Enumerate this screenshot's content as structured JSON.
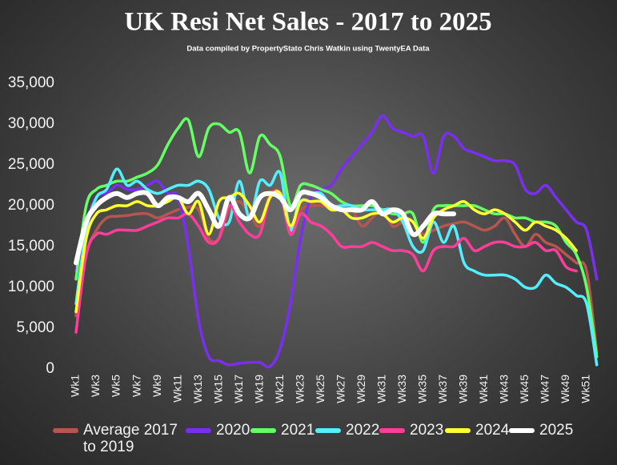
{
  "chart_data": {
    "type": "line",
    "title": "UK  Resi Net Sales - 2017 to 2025",
    "subtitle": "Data compiled by PropertyStato Chris Watkin using TwentyEA Data",
    "categories": [
      "Wk1",
      null,
      "Wk3",
      null,
      "Wk5",
      null,
      "Wk7",
      null,
      "Wk9",
      null,
      "Wk11",
      null,
      "Wk13",
      null,
      "Wk15",
      null,
      "Wk17",
      null,
      "Wk19",
      null,
      "Wk21",
      null,
      "Wk23",
      null,
      "Wk25",
      null,
      "Wk27",
      null,
      "Wk29",
      null,
      "Wk31",
      null,
      "Wk33",
      null,
      "Wk35",
      null,
      "Wk37",
      null,
      "Wk39",
      null,
      "Wk41",
      null,
      "Wk43",
      null,
      "Wk45",
      null,
      "Wk47",
      null,
      "Wk49",
      null,
      "Wk51",
      null
    ],
    "ylim": [
      0,
      35000
    ],
    "yticks": [
      0,
      {
        "value": 5000,
        "label": "5,000"
      },
      {
        "value": 10000,
        "label": "10,000"
      },
      {
        "value": 15000,
        "label": "15,000"
      },
      {
        "value": 20000,
        "label": "20,000"
      },
      {
        "value": 25000,
        "label": "25,000"
      },
      {
        "value": 30000,
        "label": "30,000"
      },
      {
        "value": 35000,
        "label": "35,000"
      }
    ],
    "grid": false,
    "legend": "bottom",
    "series": [
      {
        "name": "Average 2017 to 2019",
        "color": "#b5574f",
        "values": [
          6500,
          14000,
          17000,
          18500,
          18700,
          18800,
          19000,
          19000,
          18500,
          19000,
          19500,
          19800,
          19500,
          16000,
          16000,
          19500,
          20500,
          19000,
          17500,
          21500,
          21000,
          17500,
          19500,
          20000,
          20000,
          19800,
          19500,
          19500,
          17500,
          18500,
          19500,
          17500,
          18000,
          18000,
          16500,
          17000,
          17500,
          17800,
          18000,
          17500,
          17000,
          17500,
          18500,
          16500,
          15000,
          16500,
          15500,
          15000,
          14000,
          13000,
          12000,
          2000
        ]
      },
      {
        "name": "2020",
        "color": "#7a2ff0",
        "values": [
          12000,
          18000,
          21000,
          21500,
          22500,
          22000,
          22000,
          22500,
          23000,
          21500,
          21000,
          15000,
          6000,
          1500,
          1000,
          500,
          700,
          800,
          800,
          300,
          2500,
          8000,
          16000,
          21000,
          22000,
          22500,
          24500,
          26000,
          27500,
          29000,
          31000,
          29500,
          29000,
          28500,
          28500,
          24000,
          28500,
          28500,
          27000,
          26500,
          26000,
          25500,
          25500,
          25000,
          22000,
          21500,
          22500,
          21000,
          19500,
          18000,
          17000,
          11000
        ]
      },
      {
        "name": "2021",
        "color": "#66ff66",
        "values": [
          11000,
          20000,
          22000,
          22500,
          23000,
          23000,
          23500,
          24000,
          25000,
          27500,
          29500,
          30500,
          26000,
          29500,
          30000,
          29000,
          29000,
          24000,
          28500,
          27500,
          26000,
          20000,
          22500,
          22500,
          22000,
          21500,
          20500,
          20000,
          20000,
          20000,
          19500,
          19000,
          19000,
          19000,
          15500,
          19500,
          20000,
          20000,
          20000,
          20000,
          19500,
          19000,
          19000,
          18500,
          18500,
          18000,
          18000,
          17500,
          15500,
          14000,
          10000,
          1500
        ]
      },
      {
        "name": "2022",
        "color": "#55eeff",
        "values": [
          8000,
          17000,
          21000,
          22000,
          24500,
          22500,
          23000,
          22000,
          21500,
          22000,
          22500,
          22500,
          23000,
          22000,
          18500,
          18000,
          23000,
          18500,
          23000,
          22500,
          24000,
          17000,
          21500,
          21500,
          21500,
          20000,
          20000,
          20000,
          19500,
          19500,
          19500,
          19500,
          18000,
          15000,
          14500,
          18000,
          15500,
          17500,
          13000,
          12000,
          11500,
          11500,
          11500,
          11000,
          10000,
          10000,
          11500,
          10500,
          10000,
          9000,
          8000,
          500
        ]
      },
      {
        "name": "2023",
        "color": "#ff3d9a",
        "values": [
          4500,
          14000,
          16500,
          16500,
          17000,
          17000,
          17000,
          17500,
          18000,
          18500,
          18500,
          19000,
          17500,
          15500,
          16000,
          20000,
          18000,
          16500,
          16500,
          21000,
          21500,
          16500,
          19000,
          18000,
          17500,
          16500,
          15000,
          15000,
          15000,
          15500,
          15000,
          14500,
          14500,
          14000,
          12000,
          14500,
          15000,
          15000,
          16000,
          14500,
          15000,
          15500,
          15500,
          15000,
          15000,
          15500,
          14500,
          14500,
          12500,
          12000,
          null,
          null
        ]
      },
      {
        "name": "2024",
        "color": "#ffff33",
        "values": [
          7000,
          16000,
          19000,
          19500,
          20000,
          20000,
          20500,
          20000,
          20000,
          20500,
          21000,
          19000,
          20500,
          16500,
          20500,
          21000,
          21500,
          20000,
          18000,
          21000,
          21500,
          17500,
          20500,
          20500,
          20500,
          19500,
          19500,
          18500,
          18500,
          19000,
          19000,
          18000,
          18500,
          18000,
          16000,
          18500,
          19500,
          20000,
          20500,
          19500,
          19000,
          19500,
          19000,
          18000,
          17000,
          18000,
          17500,
          17000,
          16000,
          14500,
          null,
          null
        ]
      },
      {
        "name": "2025",
        "color": "#ffffff",
        "values": [
          13000,
          18000,
          20000,
          21000,
          21500,
          21000,
          21500,
          21500,
          20000,
          21000,
          21000,
          20500,
          21500,
          19500,
          17500,
          21000,
          19000,
          18500,
          21000,
          21500,
          21000,
          19500,
          21500,
          21500,
          21000,
          20000,
          19500,
          19500,
          19500,
          20500,
          19000,
          19500,
          19000,
          16500,
          17500,
          19000,
          19000,
          19000,
          null,
          null,
          null,
          null,
          null,
          null,
          null,
          null,
          null,
          null,
          null,
          null,
          null,
          null
        ]
      }
    ]
  }
}
